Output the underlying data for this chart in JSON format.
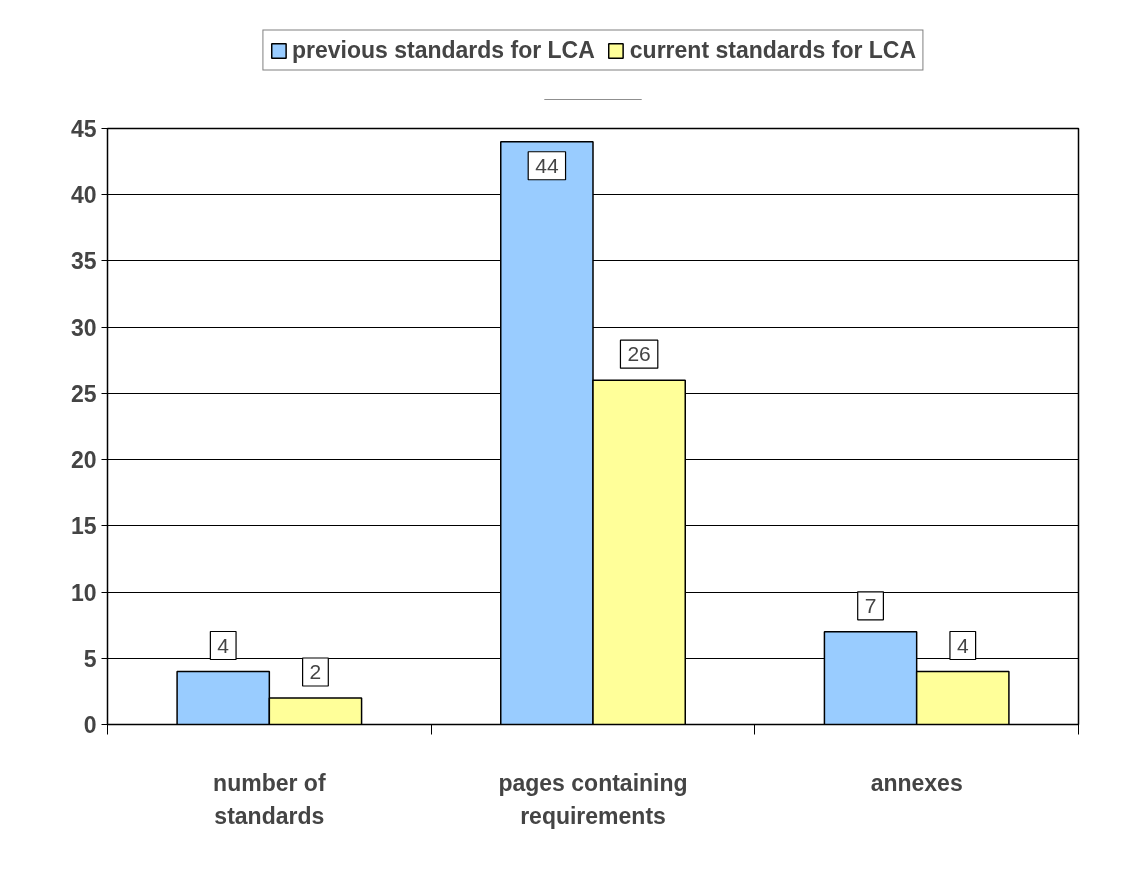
{
  "chart_data": {
    "type": "bar",
    "categories": [
      "number of\nstandards",
      "pages containing\nrequirements",
      "annexes"
    ],
    "series": [
      {
        "name": "previous standards for LCA",
        "color": "#99ccff",
        "values": [
          4,
          44,
          7
        ]
      },
      {
        "name": "current standards for LCA",
        "color": "#ffff99",
        "values": [
          2,
          26,
          4
        ]
      }
    ],
    "ylim": [
      0,
      45
    ],
    "yticks": [
      0,
      5,
      10,
      15,
      20,
      25,
      30,
      35,
      40,
      45
    ],
    "grid": "y",
    "legend": "top",
    "data_labels": true
  }
}
